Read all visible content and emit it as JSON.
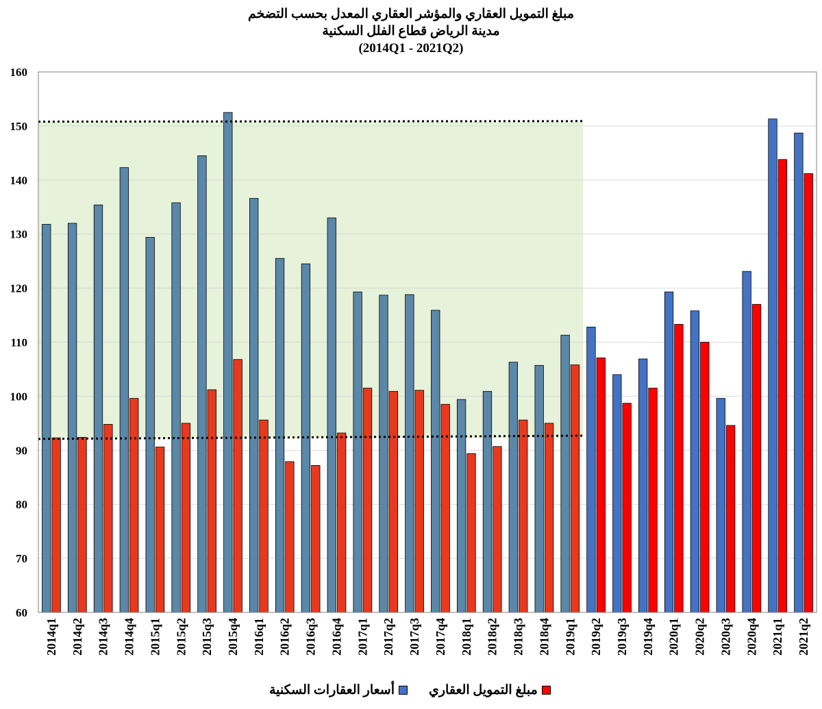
{
  "titles": {
    "line1": "مبلغ التمويل العقاري والمؤشر العقاري المعدل بحسب التضخم",
    "line2": "مدينة الرياض قطاع الفلل السكنية",
    "line3": "(2014Q1 - 2021Q2)"
  },
  "legend": {
    "series1_label": "أسعار العقارات السكنية",
    "series2_label": "مبلغ التمويل العقاري"
  },
  "colors": {
    "series1": "#4472C4",
    "series1_shaded": "#5B87A8",
    "series2": "#FF0000",
    "series2_shaded": "#E8391E",
    "shade": "#E6F2D9",
    "grid": "#D9D9D9"
  },
  "chart_data": {
    "type": "bar",
    "title": "مبلغ التمويل العقاري والمؤشر العقاري المعدل بحسب التضخم",
    "subtitle": "مدينة الرياض قطاع الفلل السكنية",
    "categories": [
      "2014q1",
      "2014q2",
      "2014q3",
      "2014q4",
      "2015q1",
      "2015q2",
      "2015q3",
      "2015q4",
      "2016q1",
      "2016q2",
      "2016q3",
      "2016q4",
      "2017q1",
      "2017q2",
      "2017q3",
      "2017q4",
      "2018q1",
      "2018q2",
      "2018q3",
      "2018q4",
      "2019q1",
      "2019q2",
      "2019q3",
      "2019q4",
      "2020q1",
      "2020q2",
      "2020q3",
      "2020q4",
      "2021q1",
      "2021q2"
    ],
    "series": [
      {
        "name": "أسعار العقارات السكنية",
        "values": [
          131.8,
          132.0,
          135.4,
          142.3,
          129.4,
          135.8,
          144.5,
          152.5,
          136.6,
          125.5,
          124.5,
          133.0,
          119.3,
          118.7,
          118.8,
          115.9,
          99.4,
          100.9,
          106.3,
          105.7,
          111.3,
          112.8,
          104.0,
          106.9,
          119.3,
          115.8,
          99.6,
          123.1,
          151.3,
          148.7
        ]
      },
      {
        "name": "مبلغ التمويل العقاري",
        "values": [
          92.3,
          92.4,
          94.8,
          99.6,
          90.6,
          95.0,
          101.2,
          106.8,
          95.6,
          87.9,
          87.2,
          93.2,
          101.5,
          100.9,
          101.1,
          98.5,
          89.4,
          90.7,
          95.6,
          95.0,
          105.8,
          107.1,
          98.7,
          101.5,
          113.3,
          110.0,
          94.6,
          117.0,
          143.8,
          141.2
        ]
      }
    ],
    "ylim": [
      60,
      160
    ],
    "yticks": [
      60,
      70,
      80,
      90,
      100,
      110,
      120,
      130,
      140,
      150,
      160
    ],
    "xlabel": "",
    "ylabel": "",
    "shaded_region": {
      "from_category": "2014q1",
      "to_category": "2019q1",
      "y_from": 92.3,
      "y_to": 150.8
    },
    "reference_lines": [
      {
        "style": "dotted",
        "y_start": 150.8,
        "y_end": 150.9
      },
      {
        "style": "dotted",
        "y_start": 92.1,
        "y_end": 92.7
      }
    ],
    "grid": true,
    "legend_position": "bottom"
  }
}
